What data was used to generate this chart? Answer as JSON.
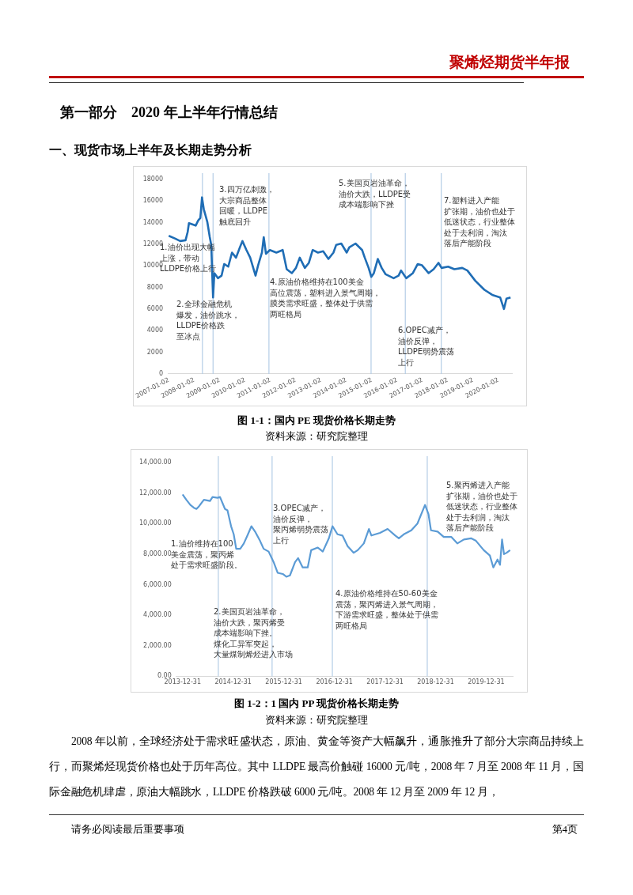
{
  "chart_data": [
    {
      "type": "line",
      "title": "图 1-1：国内 PE 现货价格长期走势",
      "annotations": [
        "聚烯烃期货半年报",
        "第一部分　2020 年上半年行情总结",
        "一、现货市场上半年及长期走势分析",
        "资料来源：研究院整理",
        "1.油价出现大幅上涨，带动LLDPE价格上行",
        "2.全球金融危机爆发，油价跳水，LLDPE价格跌至冰点",
        "3.四万亿刺激，大宗商品整体回暖，LLDPE触底回升",
        "4.原油价格维持在100美金高位震荡，塑料进入景气周期，膜类需求旺盛，整体处于供需两旺格局",
        "5.美国页岩油革命，油价大跌，LLDPE受成本端影响下挫",
        "6.OPEC减产，油价反弹，LLDPE弱势震荡上行",
        "7.塑料进入产能扩张期，油价也处于低迷状态，行业整体处于去利润，淘汰落后产能阶段"
      ],
      "xlim": [
        "2006-12-20",
        "2020-07-15"
      ],
      "xticks": [
        "2007-01-02",
        "2008-01-02",
        "2009-01-02",
        "2010-01-02",
        "2011-01-02",
        "2012-01-02",
        "2013-01-02",
        "2014-01-02",
        "2015-01-02",
        "2016-01-02",
        "2017-01-02",
        "2018-01-02",
        "2019-01-02",
        "2020-01-02"
      ],
      "ylim": [
        0,
        18000
      ],
      "yticks": [
        0,
        2000,
        4000,
        6000,
        8000,
        10000,
        12000,
        14000,
        16000,
        18000
      ],
      "ref_lines": [
        {
          "axis": "x",
          "value": "2008-05-01",
          "color": "#b4cde6"
        },
        {
          "axis": "x",
          "value": "2008-10-01",
          "color": "#b4cde6"
        },
        {
          "axis": "x",
          "value": "2010-12-15",
          "color": "#b4cde6"
        },
        {
          "axis": "x",
          "value": "2014-12-25",
          "color": "#b4cde6"
        },
        {
          "axis": "x",
          "value": "2016-05-01",
          "color": "#b4cde6"
        },
        {
          "axis": "x",
          "value": "2017-10-01",
          "color": "#b4cde6"
        }
      ],
      "series": [
        {
          "color": "#1f6db5",
          "x": [
            "2007-01-02",
            "2007-04-01",
            "2007-06-15",
            "2007-09-01",
            "2007-10-01",
            "2007-10-20",
            "2008-01-25",
            "2008-03-01",
            "2008-04-01",
            "2008-04-25",
            "2008-05-20",
            "2008-07-10",
            "2008-08-15",
            "2008-09-05",
            "2008-10-01",
            "2008-10-20",
            "2008-12-10",
            "2009-02-01",
            "2009-03-10",
            "2009-05-08",
            "2009-07-01",
            "2009-08-28",
            "2009-10-22",
            "2009-11-28",
            "2010-01-25",
            "2010-03-20",
            "2010-06-05",
            "2010-07-12",
            "2010-09-05",
            "2010-10-01",
            "2010-11-02",
            "2010-12-28",
            "2011-04-01",
            "2011-07-01",
            "2011-08-28",
            "2011-11-10",
            "2012-01-08",
            "2012-03-03",
            "2012-05-15",
            "2012-07-12",
            "2012-09-05",
            "2012-11-20",
            "2013-02-03",
            "2013-04-20",
            "2013-07-01",
            "2013-08-10",
            "2013-10-22",
            "2014-01-08",
            "2014-02-14",
            "2014-05-15",
            "2014-08-18",
            "2014-09-25",
            "2014-11-20",
            "2014-12-28",
            "2015-02-03",
            "2015-04-01",
            "2015-05-27",
            "2015-07-23",
            "2015-11-15",
            "2016-01-25",
            "2016-03-01",
            "2016-05-15",
            "2016-08-18",
            "2016-10-27",
            "2016-12-28",
            "2017-04-01",
            "2017-06-13",
            "2017-08-22",
            "2017-10-05",
            "2018-01-08",
            "2018-04-08",
            "2018-07-30",
            "2018-10-12",
            "2019-02-03",
            "2019-06-14",
            "2019-10-05",
            "2020-01-27",
            "2020-03-22",
            "2020-04-27",
            "2020-06-25"
          ],
          "values": [
            12780,
            12540,
            12300,
            12370,
            13130,
            13960,
            13730,
            14200,
            14440,
            16340,
            15270,
            14080,
            12660,
            11950,
            7080,
            9330,
            8860,
            9100,
            10170,
            9930,
            11230,
            10760,
            11710,
            12300,
            11470,
            10760,
            9100,
            10050,
            11230,
            12660,
            11120,
            11470,
            11230,
            11470,
            9690,
            9330,
            9810,
            10760,
            9810,
            10280,
            11470,
            11230,
            11350,
            10640,
            11230,
            11950,
            12070,
            11230,
            11710,
            12070,
            11470,
            10760,
            9810,
            8980,
            9330,
            10640,
            9810,
            9220,
            8860,
            9100,
            9570,
            8860,
            9330,
            10170,
            10050,
            9330,
            9690,
            10280,
            9810,
            9930,
            9690,
            9810,
            9570,
            8620,
            7790,
            7320,
            7080,
            6010,
            6960,
            7080
          ]
        }
      ]
    },
    {
      "type": "line",
      "title": "图 1-2：1 国内 PP 现货价格长期走势",
      "annotations": [
        "资料来源：研究院整理",
        "2008 年以前，全球经济处于需求旺盛状态，原油、黄金等资产大幅飙升，通胀推升了部分大宗商品持续上行，而聚烯烃现货价格也处于历年高位。其中 LLDPE 最高价触碰 16000 元/吨，2008 年 7 月至 2008 年 11 月，国际金融危机肆虐，原油大幅跳水，LLDPE 价格跌破 6000 元/吨。2008 年 12 月至 2009 年 12 月，",
        "请务必阅读最后重要事项",
        "第4页",
        "1.油价维持在100美金震荡，聚丙烯处于需求旺盛阶段。",
        "2.美国页岩油革命，油价大跌，聚丙烯受成本端影响下挫。煤化工异军突起，大量煤制烯烃进入市场",
        "3.OPEC减产，油价反弹，聚丙烯弱势震荡上行",
        "4.原油价格维持在50-60美金震荡，聚丙烯进入景气周期，下游需求旺盛，整体处于供需两旺格局",
        "5.聚丙烯进入产能扩张期，油价也处于低迷状态，行业整体处于去利润，淘汰落后产能阶段"
      ],
      "xlim": [
        "2013-11-15",
        "2020-07-10"
      ],
      "xticks": [
        "2013-12-31",
        "2014-12-31",
        "2015-12-31",
        "2016-12-31",
        "2017-12-31",
        "2018-12-31",
        "2019-12-31"
      ],
      "ylim": [
        0,
        14000
      ],
      "yticks": [
        {
          "value": 0,
          "label": "0.00"
        },
        {
          "value": 2000,
          "label": "2,000.00"
        },
        {
          "value": 4000,
          "label": "4,000.00"
        },
        {
          "value": 6000,
          "label": "6,000.00"
        },
        {
          "value": 8000,
          "label": "8,000.00"
        },
        {
          "value": 10000,
          "label": "10,000.00"
        },
        {
          "value": 12000,
          "label": "12,000.00"
        },
        {
          "value": 14000,
          "label": "14,000.00"
        }
      ],
      "ref_lines": [
        {
          "axis": "x",
          "value": "2014-09-15",
          "color": "#b4cde6"
        },
        {
          "axis": "x",
          "value": "2015-10-08",
          "color": "#b4cde6"
        },
        {
          "axis": "x",
          "value": "2016-12-16",
          "color": "#b4cde6"
        },
        {
          "axis": "x",
          "value": "2018-11-01",
          "color": "#b4cde6"
        }
      ],
      "series": [
        {
          "color": "#5b9bd5",
          "x": [
            "2013-12-31",
            "2014-01-27",
            "2014-02-25",
            "2014-03-22",
            "2014-04-10",
            "2014-04-28",
            "2014-06-03",
            "2014-07-17",
            "2014-08-04",
            "2014-09-09",
            "2014-09-27",
            "2014-11-02",
            "2014-11-20",
            "2014-12-16",
            "2015-01-04",
            "2015-01-22",
            "2015-02-20",
            "2015-03-18",
            "2015-04-13",
            "2015-05-12",
            "2015-06-07",
            "2015-07-13",
            "2015-08-08",
            "2015-09-13",
            "2015-10-19",
            "2015-11-17",
            "2015-12-24",
            "2016-01-19",
            "2016-02-14",
            "2016-03-22",
            "2016-04-13",
            "2016-05-16",
            "2016-06-21",
            "2016-07-16",
            "2016-09-02",
            "2016-10-08",
            "2016-11-21",
            "2016-12-17",
            "2017-01-22",
            "2017-02-27",
            "2017-04-05",
            "2017-05-19",
            "2017-06-17",
            "2017-07-31",
            "2017-09-06",
            "2017-09-24",
            "2017-11-25",
            "2018-01-19",
            "2018-03-15",
            "2018-04-10",
            "2018-05-16",
            "2018-07-09",
            "2018-08-22",
            "2018-10-16",
            "2018-11-10",
            "2018-11-28",
            "2019-01-15",
            "2019-02-28",
            "2019-04-23",
            "2019-06-06",
            "2019-07-23",
            "2019-09-13",
            "2019-10-19",
            "2019-12-14",
            "2020-01-27",
            "2020-02-21",
            "2020-03-22",
            "2020-04-09",
            "2020-04-24",
            "2020-05-08",
            "2020-05-27",
            "2020-06-21"
          ],
          "values": [
            11910,
            11560,
            11220,
            11040,
            10960,
            11130,
            11560,
            11480,
            11740,
            11690,
            11740,
            10960,
            10870,
            9830,
            9300,
            8350,
            8350,
            8700,
            9220,
            9830,
            9480,
            8870,
            8350,
            8170,
            7480,
            6780,
            6700,
            6520,
            6610,
            7480,
            7740,
            7130,
            7130,
            8260,
            8430,
            8170,
            9040,
            9830,
            9300,
            9220,
            8520,
            8090,
            8260,
            8700,
            9650,
            9220,
            9390,
            9650,
            9220,
            9040,
            9300,
            9560,
            10000,
            11220,
            10610,
            9560,
            9480,
            9130,
            9130,
            8700,
            8960,
            9040,
            8870,
            8260,
            7910,
            7130,
            7650,
            7300,
            8960,
            8000,
            8090,
            8260
          ]
        }
      ]
    }
  ]
}
